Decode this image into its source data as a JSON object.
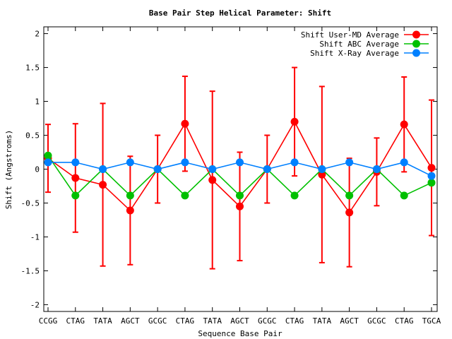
{
  "chart_data": {
    "type": "line",
    "title": "Base Pair Step Helical Parameter: Shift",
    "xlabel": "Sequence Base Pair",
    "ylabel": "Shift (Angstroms)",
    "ylim": [
      -2.1,
      2.1
    ],
    "yticks": [
      -2,
      -1.5,
      -1,
      -0.5,
      0,
      0.5,
      1,
      1.5,
      2
    ],
    "ytick_labels": [
      "-2",
      "-1.5",
      "-1",
      "-0.5",
      "0",
      "0.5",
      "1",
      "1.5",
      "2"
    ],
    "categories": [
      "CCGG",
      "CTAG",
      "TATA",
      "AGCT",
      "GCGC",
      "CTAG",
      "TATA",
      "AGCT",
      "GCGC",
      "CTAG",
      "TATA",
      "AGCT",
      "GCGC",
      "CTAG",
      "TGCA"
    ],
    "legend_position": "top-right",
    "series": [
      {
        "name": "Shift User-MD Average",
        "color": "#ff0000",
        "values": [
          0.16,
          -0.13,
          -0.23,
          -0.61,
          0.0,
          0.67,
          -0.16,
          -0.55,
          0.0,
          0.7,
          -0.08,
          -0.64,
          -0.04,
          0.66,
          0.02
        ],
        "errors": [
          0.5,
          0.8,
          1.2,
          0.8,
          0.5,
          0.7,
          1.31,
          0.8,
          0.5,
          0.8,
          1.3,
          0.8,
          0.5,
          0.7,
          1.0
        ]
      },
      {
        "name": "Shift ABC Average",
        "color": "#00c000",
        "values": [
          0.2,
          -0.39,
          0.0,
          -0.39,
          0.0,
          -0.39,
          0.0,
          -0.39,
          0.0,
          -0.39,
          0.0,
          -0.39,
          0.0,
          -0.39,
          -0.2
        ]
      },
      {
        "name": "Shift X-Ray Average",
        "color": "#0080ff",
        "values": [
          0.1,
          0.1,
          0.0,
          0.1,
          0.0,
          0.1,
          0.0,
          0.1,
          0.0,
          0.1,
          0.0,
          0.1,
          0.0,
          0.1,
          -0.1
        ]
      }
    ]
  }
}
